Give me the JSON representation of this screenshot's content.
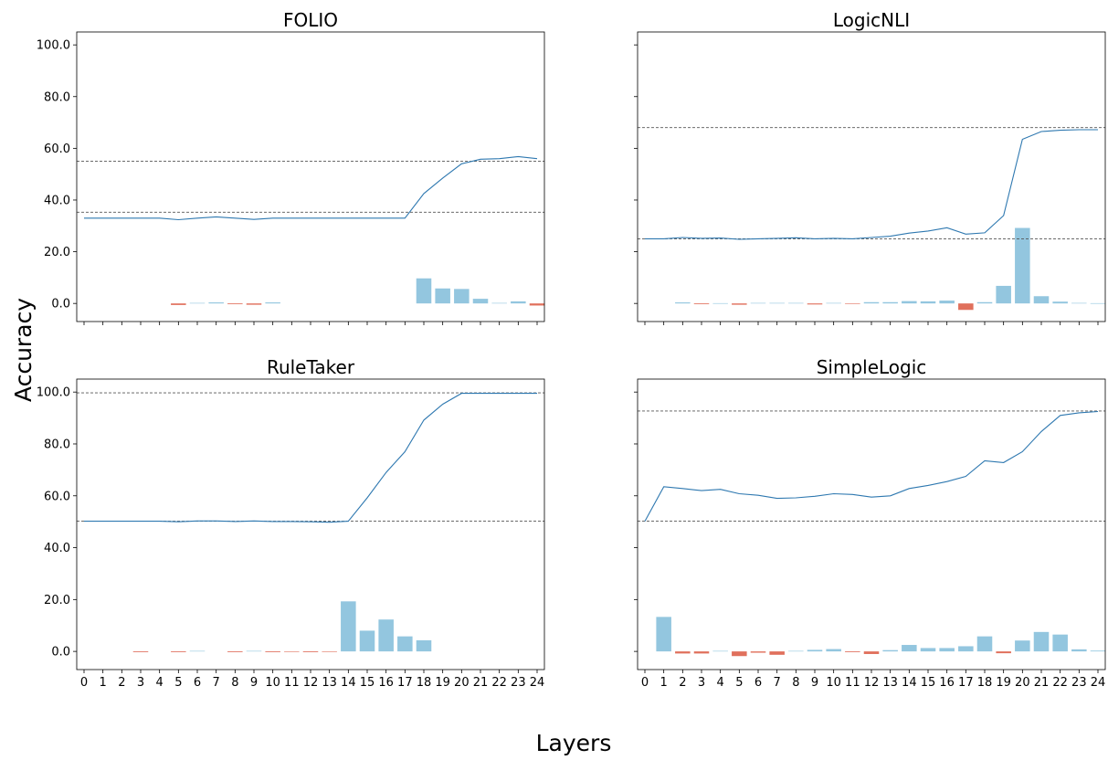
{
  "figure": {
    "ylabel": "Accuracy",
    "xlabel": "Layers"
  },
  "colors": {
    "line": "#2e78b0",
    "bar_positive": "#93c6df",
    "bar_negative": "#e0705c",
    "reference": "#555555"
  },
  "chart_data": [
    {
      "type": "line+bar",
      "title": "FOLIO",
      "ylim": [
        -7,
        105
      ],
      "yticks": [
        "0.0",
        "20.0",
        "40.0",
        "60.0",
        "80.0",
        "100.0"
      ],
      "x": [
        0,
        1,
        2,
        3,
        4,
        5,
        6,
        7,
        8,
        9,
        10,
        11,
        12,
        13,
        14,
        15,
        16,
        17,
        18,
        19,
        20,
        21,
        22,
        23,
        24
      ],
      "xtick_labels": [],
      "show_yticks": true,
      "reference_lines": [
        55.0,
        35.3
      ],
      "series": [
        {
          "kind": "line",
          "values": [
            33.0,
            33.0,
            33.0,
            33.0,
            33.0,
            32.4,
            33.0,
            33.5,
            33.0,
            32.5,
            33.0,
            33.0,
            33.0,
            33.0,
            33.0,
            33.0,
            33.0,
            33.0,
            42.5,
            48.5,
            54.0,
            55.8,
            56.0,
            56.8,
            56.0
          ]
        },
        {
          "kind": "bar",
          "values": [
            0,
            0,
            0,
            0,
            0,
            -0.6,
            0.2,
            0.4,
            -0.3,
            -0.5,
            0.4,
            0,
            0,
            0,
            0,
            0,
            0,
            0,
            9.7,
            5.8,
            5.6,
            1.8,
            0.2,
            0.8,
            -0.8
          ]
        }
      ]
    },
    {
      "type": "line+bar",
      "title": "LogicNLI",
      "ylim": [
        -7,
        105
      ],
      "yticks": [
        "0.0",
        "20.0",
        "40.0",
        "60.0",
        "80.0",
        "100.0"
      ],
      "x": [
        0,
        1,
        2,
        3,
        4,
        5,
        6,
        7,
        8,
        9,
        10,
        11,
        12,
        13,
        14,
        15,
        16,
        17,
        18,
        19,
        20,
        21,
        22,
        23,
        24
      ],
      "xtick_labels": [],
      "show_yticks": false,
      "reference_lines": [
        68.0,
        25.0
      ],
      "series": [
        {
          "kind": "line",
          "values": [
            25.0,
            25.0,
            25.5,
            25.2,
            25.3,
            24.8,
            25.0,
            25.2,
            25.4,
            25.0,
            25.2,
            25.0,
            25.5,
            26.0,
            27.2,
            28.0,
            29.3,
            26.8,
            27.3,
            34.0,
            63.5,
            66.5,
            67.0,
            67.2,
            67.2
          ]
        },
        {
          "kind": "bar",
          "values": [
            0,
            0,
            0.4,
            -0.3,
            0.1,
            -0.5,
            0.2,
            0.2,
            0.2,
            -0.4,
            0.2,
            -0.2,
            0.5,
            0.5,
            0.9,
            0.8,
            1.1,
            -2.5,
            0.5,
            6.8,
            29.2,
            2.8,
            0.7,
            0.2,
            0.1
          ]
        }
      ]
    },
    {
      "type": "line+bar",
      "title": "RuleTaker",
      "ylim": [
        -7,
        105
      ],
      "yticks": [
        "0.0",
        "20.0",
        "40.0",
        "60.0",
        "80.0",
        "100.0"
      ],
      "x": [
        0,
        1,
        2,
        3,
        4,
        5,
        6,
        7,
        8,
        9,
        10,
        11,
        12,
        13,
        14,
        15,
        16,
        17,
        18,
        19,
        20,
        21,
        22,
        23,
        24
      ],
      "xtick_labels": [
        "0",
        "1",
        "2",
        "3",
        "4",
        "5",
        "6",
        "7",
        "8",
        "9",
        "10",
        "11",
        "12",
        "13",
        "14",
        "15",
        "16",
        "17",
        "18",
        "19",
        "20",
        "21",
        "22",
        "23",
        "24"
      ],
      "show_yticks": true,
      "reference_lines": [
        99.7,
        50.2
      ],
      "series": [
        {
          "kind": "line",
          "values": [
            50.2,
            50.2,
            50.2,
            50.2,
            50.2,
            50.0,
            50.3,
            50.3,
            50.1,
            50.3,
            50.1,
            50.1,
            50.0,
            49.8,
            50.2,
            59.2,
            69.0,
            77.0,
            89.2,
            95.3,
            99.5,
            99.5,
            99.5,
            99.5,
            99.5
          ]
        },
        {
          "kind": "bar",
          "values": [
            0,
            0,
            0,
            -0.3,
            0,
            -0.3,
            0.2,
            0,
            -0.3,
            0.2,
            -0.3,
            -0.2,
            -0.3,
            -0.2,
            19.3,
            8.0,
            12.3,
            5.8,
            4.3,
            0,
            0,
            0,
            0,
            0,
            0
          ]
        }
      ]
    },
    {
      "type": "line+bar",
      "title": "SimpleLogic",
      "ylim": [
        -7,
        105
      ],
      "yticks": [
        "0.0",
        "20.0",
        "40.0",
        "60.0",
        "80.0",
        "100.0"
      ],
      "x": [
        0,
        1,
        2,
        3,
        4,
        5,
        6,
        7,
        8,
        9,
        10,
        11,
        12,
        13,
        14,
        15,
        16,
        17,
        18,
        19,
        20,
        21,
        22,
        23,
        24
      ],
      "xtick_labels": [
        "0",
        "1",
        "2",
        "3",
        "4",
        "5",
        "6",
        "7",
        "8",
        "9",
        "10",
        "11",
        "12",
        "13",
        "14",
        "15",
        "16",
        "17",
        "18",
        "19",
        "20",
        "21",
        "22",
        "23",
        "24"
      ],
      "show_yticks": false,
      "reference_lines": [
        92.7,
        50.2
      ],
      "series": [
        {
          "kind": "line",
          "values": [
            50.2,
            63.5,
            62.8,
            62.0,
            62.5,
            60.8,
            60.2,
            59.0,
            59.2,
            59.8,
            60.8,
            60.5,
            59.5,
            60.0,
            62.8,
            64.0,
            65.5,
            67.5,
            73.5,
            72.8,
            77.0,
            84.8,
            91.0,
            92.0,
            92.5
          ]
        },
        {
          "kind": "bar",
          "values": [
            0,
            13.3,
            -0.8,
            -0.8,
            0.2,
            -1.8,
            -0.5,
            -1.3,
            0.2,
            0.6,
            0.9,
            -0.3,
            -1.0,
            0.5,
            2.5,
            1.3,
            1.3,
            2.0,
            5.8,
            -0.7,
            4.2,
            7.5,
            6.5,
            0.8,
            0.3
          ]
        }
      ]
    }
  ]
}
